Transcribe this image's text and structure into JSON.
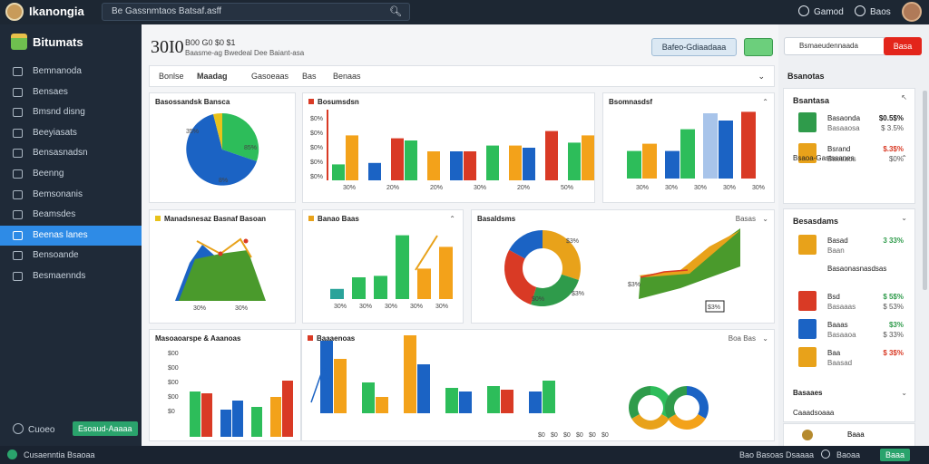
{
  "topbar": {
    "app_name": "Ikanongia",
    "search_text": "Be Gassnmtaos Batsaf.asff",
    "item1": "Gamod",
    "item2": "Baos"
  },
  "sidebar": {
    "brand": "Bitumats",
    "items": [
      {
        "label": "Bemnanoda"
      },
      {
        "label": "Bensaes"
      },
      {
        "label": "Bmsnd disng"
      },
      {
        "label": "Beeyiasats"
      },
      {
        "label": "Bensasnadsn"
      },
      {
        "label": "Beenng"
      },
      {
        "label": "Bemsonanis"
      },
      {
        "label": "Beamsdes"
      },
      {
        "label": "Beenas lanes"
      },
      {
        "label": "Bensoande"
      },
      {
        "label": "Besmaennds"
      }
    ],
    "active_index": 8,
    "bottom_label": "Cuoeo",
    "bottom_badge": "Esoaud-Aaaaa",
    "footer": "Cusaenntia Bsaoaa"
  },
  "header": {
    "big_number": "30I0",
    "sub1": "B00 G0 $0 $1",
    "sub2": "Baasme-ag Bwedeal Dee Baiant-asa",
    "btn_label": "Bafeo-Gdiaadaaa"
  },
  "tabs": [
    "Bonlse",
    "Maadag",
    "Gasoeaas",
    "Bas",
    "Benaas"
  ],
  "cards": {
    "c1_title": "Basossandsk Bansca",
    "c1_pie_label1": "35%",
    "c1_pie_label2": "85%",
    "c1_pie_label3": "8%",
    "c2_title": "Bosumsdsn",
    "c2_yticks": [
      "$0%",
      "$0%",
      "$0%",
      "$0%",
      "$0%"
    ],
    "c2_values": [
      [
        22,
        62
      ],
      [
        24
      ],
      [
        58,
        55
      ],
      [
        40
      ],
      [
        40,
        40
      ],
      [
        48
      ],
      [
        48,
        45
      ],
      [
        68
      ],
      [
        52,
        62
      ]
    ],
    "c2_xlabels": [
      "30%",
      "20%",
      "20%",
      "30%",
      "20%",
      "50%"
    ],
    "c3_title": "Bsomnasdsf",
    "c3_values": [
      [
        38,
        48
      ],
      [
        38,
        68
      ],
      [
        90,
        80
      ],
      [
        92
      ]
    ],
    "c3_xlabels": [
      "30%",
      "30%",
      "30%",
      "30%",
      "30%"
    ],
    "c4_title": "Manadsnesaz Basnaf Basoan",
    "c4_xlabels": [
      "30%",
      "30%"
    ],
    "c5_title": "Banao Baas",
    "c5_values": [
      14,
      30,
      32,
      88,
      42,
      72
    ],
    "c5_xlabels": [
      "30%",
      "30%",
      "30%",
      "30%",
      "30%"
    ],
    "c6_title": "Basaldsms",
    "c6_ctl": "Basas",
    "c6_donut": [
      {
        "value": 30,
        "color": "#e8a21a"
      },
      {
        "value": 25,
        "color": "#2f9b4b"
      },
      {
        "value": 28,
        "color": "#d93a25"
      },
      {
        "value": 17,
        "color": "#1b63c4"
      }
    ],
    "c6_pie_lbl1": "$3%",
    "c6_pie_lbl2": "$0%",
    "c6_pie_lbl3": "$3%",
    "c6_area_lbl": "$3%",
    "c6_legend": "$3%",
    "c7_title": "Masoaoarspe & Aaanoas",
    "c7_yticks": [
      "$00",
      "$00",
      "$00",
      "$00",
      "$0"
    ],
    "c7_ctl": "Boa Bas",
    "c8_title": "Baaaenoas",
    "c8_xlabels": [
      "$0",
      "$0",
      "$0",
      "$0",
      "$0",
      "$0"
    ]
  },
  "rpanel": {
    "search_text": "Bsmaeudennaada",
    "btn": "Basa",
    "head1": "Bsanotas",
    "card1_title": "Bsantasa",
    "items1": [
      {
        "l1": "Basaonda",
        "l2": "Basaaosa",
        "v1": "$0.5$%",
        "v2": "$ 3.5%",
        "vcolor": "#222",
        "icolor": "#2f9b4b"
      },
      {
        "l1": "Bsrand",
        "l2": "Baoaaos",
        "v1": "$.3$%",
        "v2": "$0%",
        "vcolor": "#d93a25",
        "icolor": "#e8a21a"
      }
    ],
    "item_head": "Bsaoa-Gastssanes",
    "card2_title": "Besasdams",
    "items2": [
      {
        "l1": "Basad",
        "l2": "Baan",
        "v1": "3 33%",
        "v2": "",
        "vcolor": "#2f9b4b",
        "icolor": "#e8a21a"
      },
      {
        "l1": "Basaonasnasdsas",
        "l2": "",
        "v1": "",
        "v2": "",
        "vcolor": "#222",
        "icolor": "#fff"
      },
      {
        "l1": "Bsd",
        "l2": "Basaaas",
        "v1": "$ 5$%",
        "v2": "$ 53%",
        "vcolor": "#2f9b4b",
        "icolor": "#d93a25"
      },
      {
        "l1": "Baaas",
        "l2": "Basaaoa",
        "v1": "$3%",
        "v2": "$ 33%",
        "vcolor": "#2f9b4b",
        "icolor": "#1b63c4"
      },
      {
        "l1": "Baa",
        "l2": "Baasad",
        "v1": "$ 3$%",
        "v2": "",
        "vcolor": "#d93a25",
        "icolor": "#e8a21a"
      }
    ],
    "head3": "Basaaes",
    "head4": "Caaadsoaaa",
    "footer_item": "Baaa"
  },
  "bottombar": {
    "left": "Cusaenntia Bsaoaa",
    "right1": "Bao Basoas Dsaaaa",
    "right2": "Baoaa",
    "right3": "Baaa"
  }
}
